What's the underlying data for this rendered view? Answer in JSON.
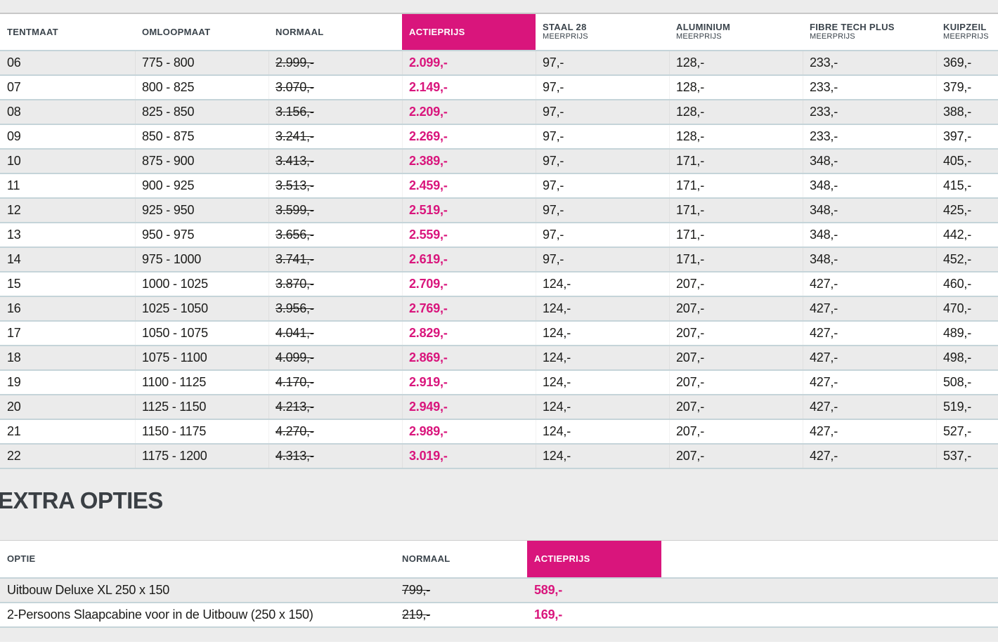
{
  "colors": {
    "accent_pink": "#d9157c",
    "row_alt_gray": "#ebebeb",
    "row_border": "#c5d4d9",
    "header_text": "#3a434b",
    "body_text": "#1b1b19"
  },
  "main_table": {
    "columns": [
      {
        "label": "TENTMAAT",
        "sub": ""
      },
      {
        "label": "OMLOOPMAAT",
        "sub": ""
      },
      {
        "label": "NORMAAL",
        "sub": ""
      },
      {
        "label": "ACTIEPRIJS",
        "sub": ""
      },
      {
        "label": "STAAL 28",
        "sub": "MEERPRIJS"
      },
      {
        "label": "ALUMINIUM",
        "sub": "MEERPRIJS"
      },
      {
        "label": "FIBRE TECH PLUS",
        "sub": "MEERPRIJS"
      },
      {
        "label": "KUIPZEIL",
        "sub": "MEERPRIJS"
      }
    ],
    "rows": [
      [
        "06",
        "775 - 800",
        "2.999,-",
        "2.099,-",
        "97,-",
        "128,-",
        "233,-",
        "369,-"
      ],
      [
        "07",
        "800 - 825",
        "3.070,-",
        "2.149,-",
        "97,-",
        "128,-",
        "233,-",
        "379,-"
      ],
      [
        "08",
        "825 - 850",
        "3.156,-",
        "2.209,-",
        "97,-",
        "128,-",
        "233,-",
        "388,-"
      ],
      [
        "09",
        "850 - 875",
        "3.241,-",
        "2.269,-",
        "97,-",
        "128,-",
        "233,-",
        "397,-"
      ],
      [
        "10",
        "875 - 900",
        "3.413,-",
        "2.389,-",
        "97,-",
        "171,-",
        "348,-",
        "405,-"
      ],
      [
        "11",
        "900 - 925",
        "3.513,-",
        "2.459,-",
        "97,-",
        "171,-",
        "348,-",
        "415,-"
      ],
      [
        "12",
        "925 - 950",
        "3.599,-",
        "2.519,-",
        "97,-",
        "171,-",
        "348,-",
        "425,-"
      ],
      [
        "13",
        "950 - 975",
        "3.656,-",
        "2.559,-",
        "97,-",
        "171,-",
        "348,-",
        "442,-"
      ],
      [
        "14",
        "975 - 1000",
        "3.741,-",
        "2.619,-",
        "97,-",
        "171,-",
        "348,-",
        "452,-"
      ],
      [
        "15",
        "1000 - 1025",
        "3.870,-",
        "2.709,-",
        "124,-",
        "207,-",
        "427,-",
        "460,-"
      ],
      [
        "16",
        "1025 - 1050",
        "3.956,-",
        "2.769,-",
        "124,-",
        "207,-",
        "427,-",
        "470,-"
      ],
      [
        "17",
        "1050 - 1075",
        "4.041,-",
        "2.829,-",
        "124,-",
        "207,-",
        "427,-",
        "489,-"
      ],
      [
        "18",
        "1075 - 1100",
        "4.099,-",
        "2.869,-",
        "124,-",
        "207,-",
        "427,-",
        "498,-"
      ],
      [
        "19",
        "1100 - 1125",
        "4.170,-",
        "2.919,-",
        "124,-",
        "207,-",
        "427,-",
        "508,-"
      ],
      [
        "20",
        "1125 - 1150",
        "4.213,-",
        "2.949,-",
        "124,-",
        "207,-",
        "427,-",
        "519,-"
      ],
      [
        "21",
        "1150 - 1175",
        "4.270,-",
        "2.989,-",
        "124,-",
        "207,-",
        "427,-",
        "527,-"
      ],
      [
        "22",
        "1175 - 1200",
        "4.313,-",
        "3.019,-",
        "124,-",
        "207,-",
        "427,-",
        "537,-"
      ]
    ]
  },
  "extra_options": {
    "heading": "EXTRA OPTIES",
    "columns": [
      "OPTIE",
      "NORMAAL",
      "ACTIEPRIJS"
    ],
    "rows": [
      [
        "Uitbouw Deluxe XL 250 x 150",
        "799,-",
        "589,-"
      ],
      [
        "2-Persoons Slaapcabine voor in de Uitbouw (250 x 150)",
        "219,-",
        "169,-"
      ]
    ]
  }
}
